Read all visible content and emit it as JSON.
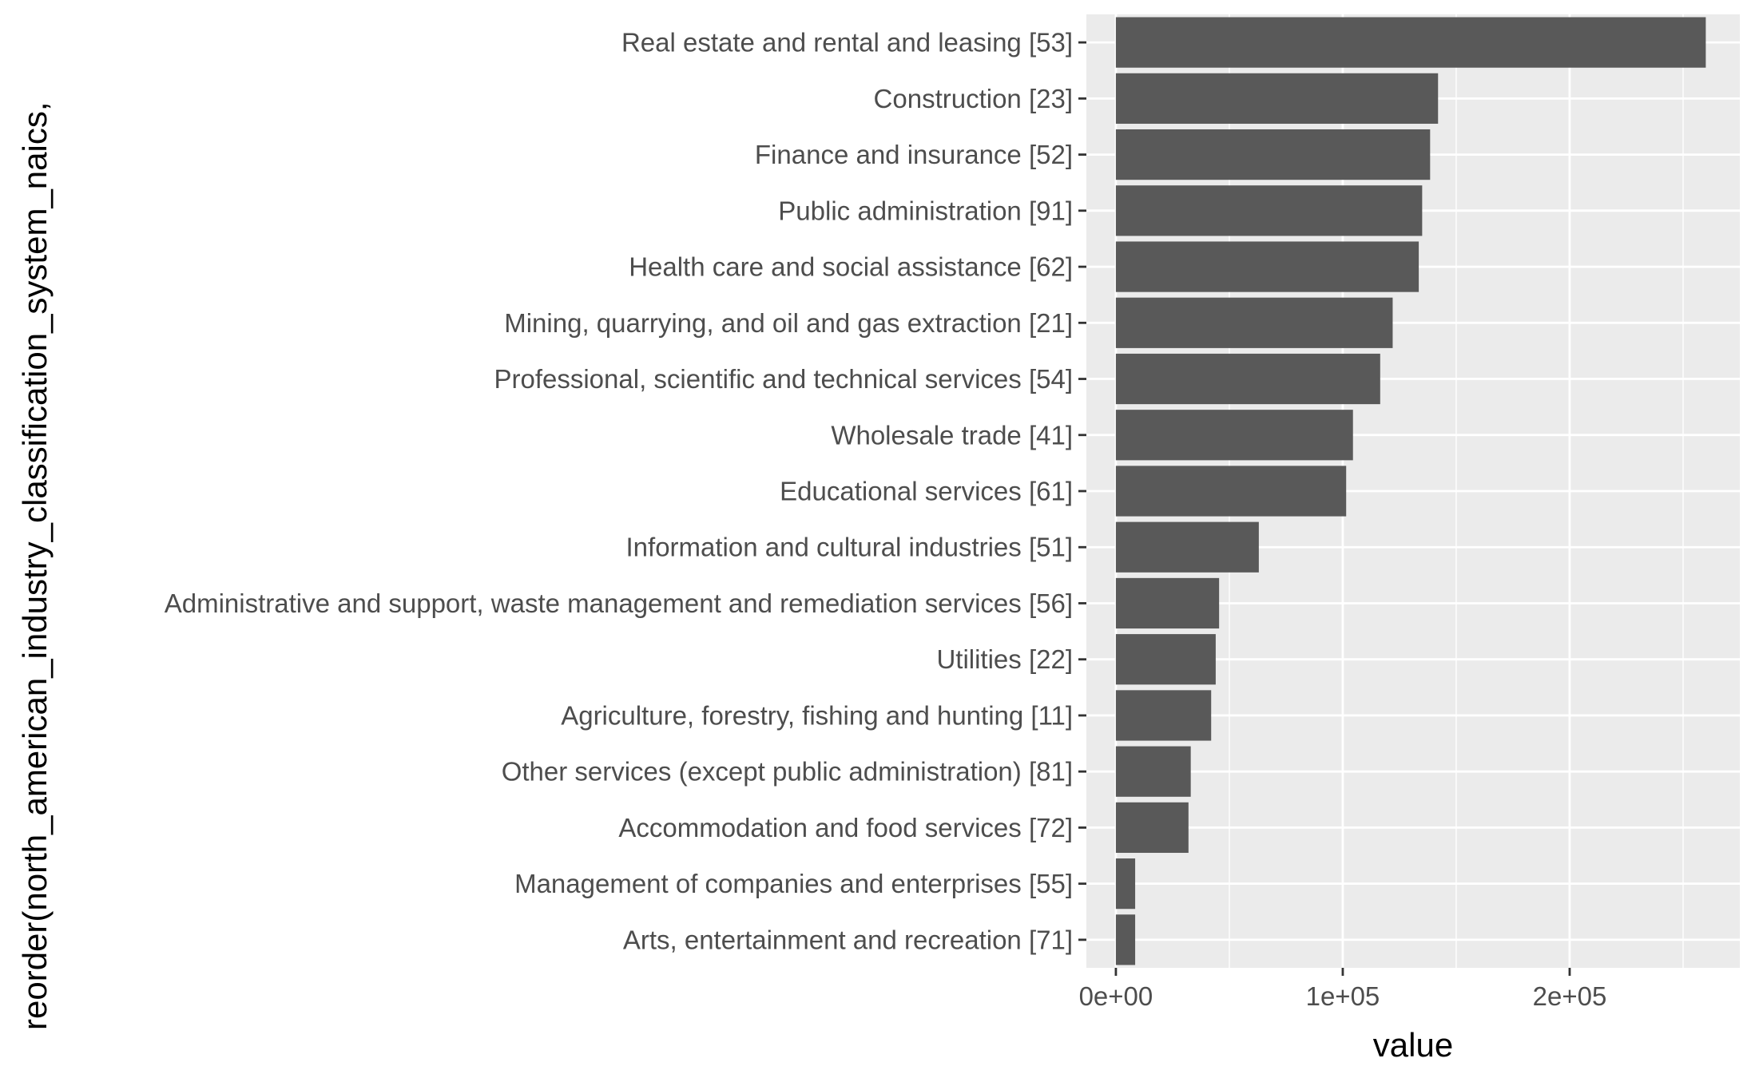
{
  "chart_data": {
    "type": "bar",
    "orientation": "horizontal",
    "xlabel": "value",
    "ylabel": "reorder(north_american_industry_classification_system_naics,",
    "xlim": [
      -13000,
      275000
    ],
    "xticks": [
      {
        "value": 0,
        "label": "0e+00"
      },
      {
        "value": 100000,
        "label": "1e+05"
      },
      {
        "value": 200000,
        "label": "2e+05"
      }
    ],
    "x_minor_ticks": [
      50000,
      150000,
      250000
    ],
    "grid": true,
    "background": "#ebebeb",
    "grid_color": "#ffffff",
    "bar_color": "#595959",
    "text_color": "#4d4d4d",
    "categories": [
      "Real estate and rental and leasing [53]",
      "Construction [23]",
      "Finance and insurance [52]",
      "Public administration [91]",
      "Health care and social assistance [62]",
      "Mining, quarrying, and oil and gas extraction [21]",
      "Professional, scientific and technical services [54]",
      "Wholesale trade [41]",
      "Educational services [61]",
      "Information and cultural industries [51]",
      "Administrative and support, waste management and remediation services [56]",
      "Utilities [22]",
      "Agriculture, forestry, fishing and hunting [11]",
      "Other services (except public administration) [81]",
      "Accommodation and food services [72]",
      "Management of companies and enterprises [55]",
      "Arts, entertainment and recreation [71]"
    ],
    "values": [
      260000,
      142000,
      138500,
      135000,
      133500,
      122000,
      116500,
      104500,
      101500,
      63000,
      45500,
      44000,
      42000,
      33000,
      32000,
      8500,
      8500
    ]
  }
}
